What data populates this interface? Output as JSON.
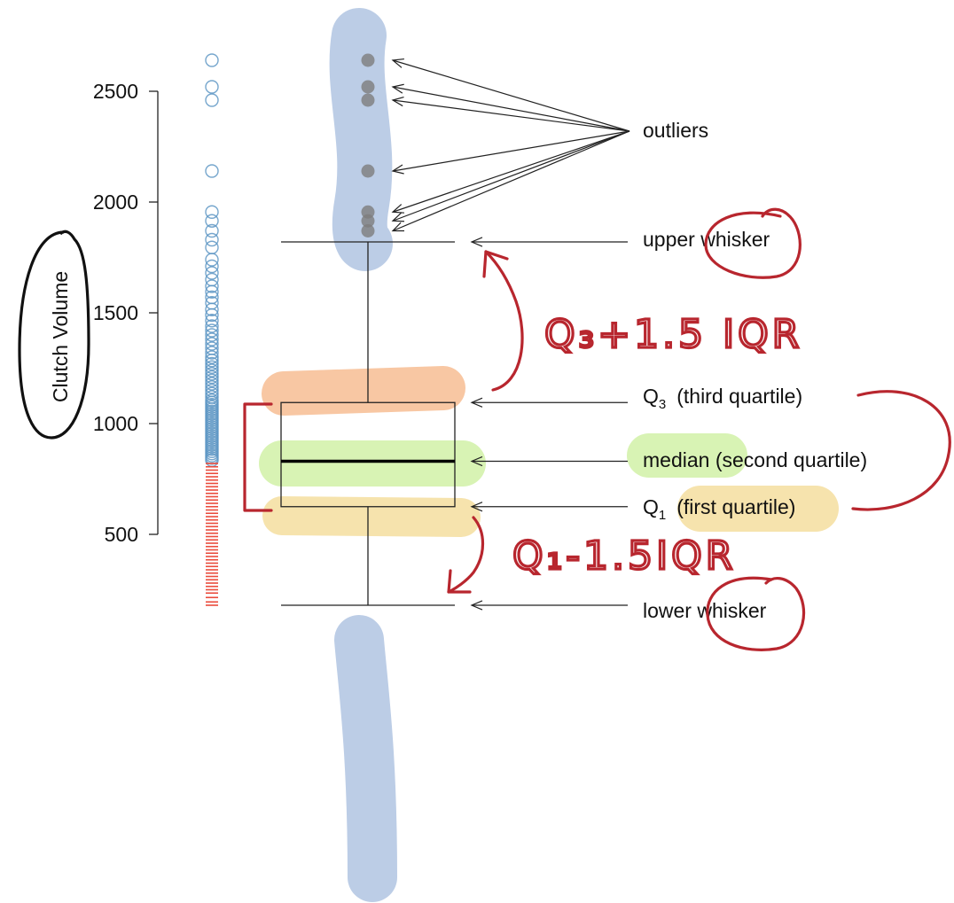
{
  "colors": {
    "hl_blue": "#bccde6",
    "hl_orange": "#f8c7a3",
    "hl_green": "#d8f3b4",
    "hl_yellow": "#f6e3ad",
    "pen_red": "#b8262e",
    "pen_black": "#111111",
    "open_point": "#5e97c4",
    "dash_point": "#ea4b3c",
    "outlier_fill": "#7d7d7d"
  },
  "chart_data": {
    "type": "box",
    "ylabel": "Clutch Volume",
    "ylim": [
      0,
      2700
    ],
    "yticks": [
      500,
      1000,
      1500,
      2000,
      2500
    ],
    "stats": {
      "lower_whisker": 180,
      "q1": 625,
      "median": 830,
      "q3": 1095,
      "upper_whisker": 1820
    },
    "outliers": [
      2640,
      2520,
      2460,
      2140,
      1955,
      1915,
      1870
    ],
    "dot_strip": {
      "open_circles": [
        2640,
        2520,
        2460,
        2140,
        1955,
        1915,
        1870,
        1830,
        1795,
        1740,
        1710,
        1680,
        1650,
        1620,
        1595,
        1570,
        1545,
        1515,
        1490,
        1465,
        1440,
        1420,
        1400,
        1380,
        1360,
        1340,
        1320,
        1300,
        1285,
        1270,
        1255,
        1240,
        1225,
        1210,
        1195,
        1180,
        1165,
        1150,
        1135,
        1120,
        1105,
        1095,
        1085,
        1075,
        1065,
        1055,
        1045,
        1035,
        1025,
        1015,
        1005,
        995,
        985,
        975,
        965,
        955,
        945,
        935,
        925,
        915,
        905,
        895,
        885,
        875,
        865,
        855,
        845,
        835
      ],
      "dashes": [
        820,
        805,
        790,
        775,
        760,
        745,
        730,
        715,
        700,
        685,
        670,
        655,
        640,
        625,
        610,
        595,
        580,
        565,
        550,
        535,
        520,
        505,
        490,
        475,
        460,
        445,
        430,
        415,
        400,
        385,
        370,
        355,
        340,
        325,
        310,
        295,
        280,
        265,
        250,
        235,
        215,
        195,
        180
      ]
    },
    "annotations": {
      "outliers": "outliers",
      "upper_whisker": "upper whisker",
      "q3_sym": "Q",
      "q3_sub": "3",
      "q3_rest": "(third quartile)",
      "median": "median (second quartile)",
      "q1_sym": "Q",
      "q1_sub": "1",
      "q1_rest": "(first quartile)",
      "lower_whisker": "lower whisker"
    }
  },
  "handwriting": {
    "upper_formula": "Q₃+1.5 IQR",
    "lower_formula": "Q₁-1.5IQR"
  }
}
